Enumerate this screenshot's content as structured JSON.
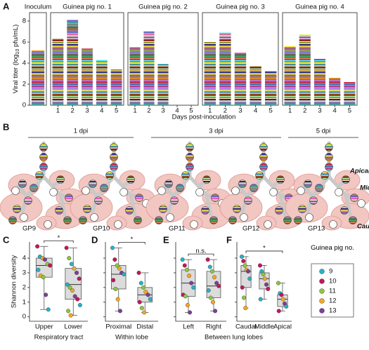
{
  "panel_labels": [
    "A",
    "B",
    "C",
    "D",
    "E",
    "F"
  ],
  "chart_data": [
    {
      "type": "bar",
      "ylabel": {
        "parts": [
          "Viral titer (log",
          "10",
          " pfu/mL)"
        ]
      },
      "xlabel": "Days post-inoculation",
      "ylim": [
        0,
        8.8
      ],
      "yticks": [
        0,
        2,
        4,
        6,
        8
      ],
      "panels": [
        {
          "title": "Inoculum",
          "categories": [
            null
          ],
          "values": [
            5.2
          ]
        },
        {
          "title": "Guinea pig no. 1",
          "categories": [
            "1",
            "2",
            "3",
            "4",
            "5"
          ],
          "values": [
            6.3,
            8.1,
            5.4,
            4.3,
            3.4
          ]
        },
        {
          "title": "Guinea pig no. 2",
          "categories": [
            "1",
            "2",
            "3",
            "4",
            "5"
          ],
          "values": [
            5.5,
            7.0,
            3.9,
            0,
            0
          ]
        },
        {
          "title": "Guinea pig no. 3",
          "categories": [
            "1",
            "2",
            "3",
            "4",
            "5"
          ],
          "values": [
            6.0,
            6.9,
            5.0,
            3.7,
            3.2
          ]
        },
        {
          "title": "Guinea pig no. 4",
          "categories": [
            "1",
            "2",
            "3",
            "4",
            "5"
          ],
          "values": [
            5.6,
            6.7,
            4.4,
            2.6,
            2.2
          ]
        }
      ]
    },
    {
      "type": "box",
      "ylabel": "Shannon diversity",
      "ylim": [
        -0.3,
        5.1
      ],
      "yticks": [
        0,
        1,
        2,
        3,
        4
      ],
      "shared_xlabel": "Between lung lobes",
      "groups": [
        {
          "xlabel": "Respiratory tract",
          "significance": "*",
          "categories": [
            "Upper",
            "Lower"
          ],
          "boxes": [
            {
              "min": 0.5,
              "q1": 2.7,
              "median": 3.5,
              "q3": 4.0,
              "max": 4.8,
              "points": [
                [
                  4.8,
                  1
                ],
                [
                  4.1,
                  0
                ],
                [
                  4.0,
                  3
                ],
                [
                  3.9,
                  4
                ],
                [
                  3.6,
                  2
                ],
                [
                  3.5,
                  1
                ],
                [
                  3.2,
                  0
                ],
                [
                  2.8,
                  3
                ],
                [
                  2.7,
                  2
                ],
                [
                  1.5,
                  4
                ],
                [
                  0.5,
                  0
                ]
              ]
            },
            {
              "min": 0.1,
              "q1": 1.2,
              "median": 2.2,
              "q3": 3.3,
              "max": 4.7,
              "points": [
                [
                  4.7,
                  1
                ],
                [
                  4.0,
                  2
                ],
                [
                  3.6,
                  0
                ],
                [
                  3.3,
                  3
                ],
                [
                  3.0,
                  4
                ],
                [
                  2.6,
                  1
                ],
                [
                  2.2,
                  0
                ],
                [
                  2.0,
                  2
                ],
                [
                  1.8,
                  3
                ],
                [
                  1.4,
                  4
                ],
                [
                  1.2,
                  1
                ],
                [
                  0.8,
                  0
                ],
                [
                  0.4,
                  2
                ],
                [
                  0.1,
                  3
                ]
              ]
            }
          ]
        },
        {
          "xlabel": "Within lobe",
          "significance": "*",
          "categories": [
            "Proximal",
            "Distal"
          ],
          "boxes": [
            {
              "min": 0.4,
              "q1": 1.9,
              "median": 2.9,
              "q3": 3.5,
              "max": 4.7,
              "points": [
                [
                  4.7,
                  0
                ],
                [
                  3.9,
                  1
                ],
                [
                  3.5,
                  2
                ],
                [
                  3.3,
                  3
                ],
                [
                  3.0,
                  4
                ],
                [
                  2.9,
                  0
                ],
                [
                  2.5,
                  1
                ],
                [
                  1.9,
                  2
                ],
                [
                  1.2,
                  3
                ],
                [
                  0.4,
                  4
                ]
              ]
            },
            {
              "min": 0.3,
              "q1": 1.0,
              "median": 1.5,
              "q3": 2.0,
              "max": 3.0,
              "points": [
                [
                  3.0,
                  1
                ],
                [
                  2.3,
                  0
                ],
                [
                  2.0,
                  2
                ],
                [
                  1.7,
                  3
                ],
                [
                  1.5,
                  4
                ],
                [
                  1.2,
                  0
                ],
                [
                  1.0,
                  1
                ],
                [
                  0.6,
                  2
                ],
                [
                  0.3,
                  3
                ]
              ]
            }
          ]
        },
        {
          "xlabel": null,
          "significance": "n.s.",
          "categories": [
            "Left",
            "Right"
          ],
          "boxes": [
            {
              "min": 0.3,
              "q1": 1.4,
              "median": 2.3,
              "q3": 3.2,
              "max": 3.9,
              "points": [
                [
                  3.9,
                  0
                ],
                [
                  3.5,
                  1
                ],
                [
                  3.2,
                  2
                ],
                [
                  2.8,
                  3
                ],
                [
                  2.3,
                  4
                ],
                [
                  2.0,
                  0
                ],
                [
                  1.5,
                  1
                ],
                [
                  1.4,
                  2
                ],
                [
                  0.8,
                  3
                ],
                [
                  0.3,
                  4
                ]
              ]
            },
            {
              "min": 0.4,
              "q1": 1.3,
              "median": 2.1,
              "q3": 3.1,
              "max": 3.9,
              "points": [
                [
                  3.9,
                  1
                ],
                [
                  3.4,
                  0
                ],
                [
                  3.1,
                  2
                ],
                [
                  2.7,
                  3
                ],
                [
                  2.3,
                  4
                ],
                [
                  2.1,
                  1
                ],
                [
                  1.8,
                  0
                ],
                [
                  1.3,
                  2
                ],
                [
                  1.0,
                  3
                ],
                [
                  0.4,
                  4
                ]
              ]
            }
          ]
        },
        {
          "xlabel": null,
          "significance": "*",
          "categories": [
            "Caudal",
            "Middle",
            "Apical"
          ],
          "boxes": [
            {
              "min": 0.6,
              "q1": 2.0,
              "median": 3.1,
              "q3": 3.5,
              "max": 4.1,
              "points": [
                [
                  4.1,
                  0
                ],
                [
                  3.8,
                  1
                ],
                [
                  3.5,
                  2
                ],
                [
                  3.2,
                  3
                ],
                [
                  3.1,
                  4
                ],
                [
                  2.6,
                  0
                ],
                [
                  2.0,
                  1
                ],
                [
                  1.3,
                  2
                ],
                [
                  0.6,
                  3
                ]
              ]
            },
            {
              "min": 1.2,
              "q1": 1.9,
              "median": 2.6,
              "q3": 3.0,
              "max": 3.5,
              "points": [
                [
                  3.5,
                  1
                ],
                [
                  3.1,
                  0
                ],
                [
                  2.9,
                  2
                ],
                [
                  2.6,
                  3
                ],
                [
                  2.2,
                  4
                ],
                [
                  1.9,
                  1
                ],
                [
                  1.2,
                  0
                ]
              ]
            },
            {
              "min": 0.4,
              "q1": 0.7,
              "median": 1.2,
              "q3": 1.5,
              "max": 2.3,
              "points": [
                [
                  2.3,
                  2
                ],
                [
                  1.6,
                  0
                ],
                [
                  1.5,
                  1
                ],
                [
                  1.2,
                  3
                ],
                [
                  0.9,
                  4
                ],
                [
                  0.7,
                  0
                ],
                [
                  0.4,
                  1
                ]
              ]
            }
          ]
        }
      ],
      "legend": {
        "title": "Guinea pig no.",
        "series": [
          {
            "name": "9",
            "color": "#29b0c8"
          },
          {
            "name": "10",
            "color": "#c2185b"
          },
          {
            "name": "11",
            "color": "#8dc63f"
          },
          {
            "name": "12",
            "color": "#f5a623"
          },
          {
            "name": "13",
            "color": "#7b3f99"
          }
        ]
      }
    }
  ],
  "diagram": {
    "timepoints": [
      {
        "label": "1 dpi",
        "lungs": [
          "GP9",
          "GP10"
        ]
      },
      {
        "label": "3 dpi",
        "lungs": [
          "GP11",
          "GP12"
        ]
      },
      {
        "label": "5 dpi",
        "lungs": [
          "GP13"
        ]
      }
    ],
    "lobe_labels": [
      "Apical",
      "Middle",
      "Caudal"
    ]
  }
}
